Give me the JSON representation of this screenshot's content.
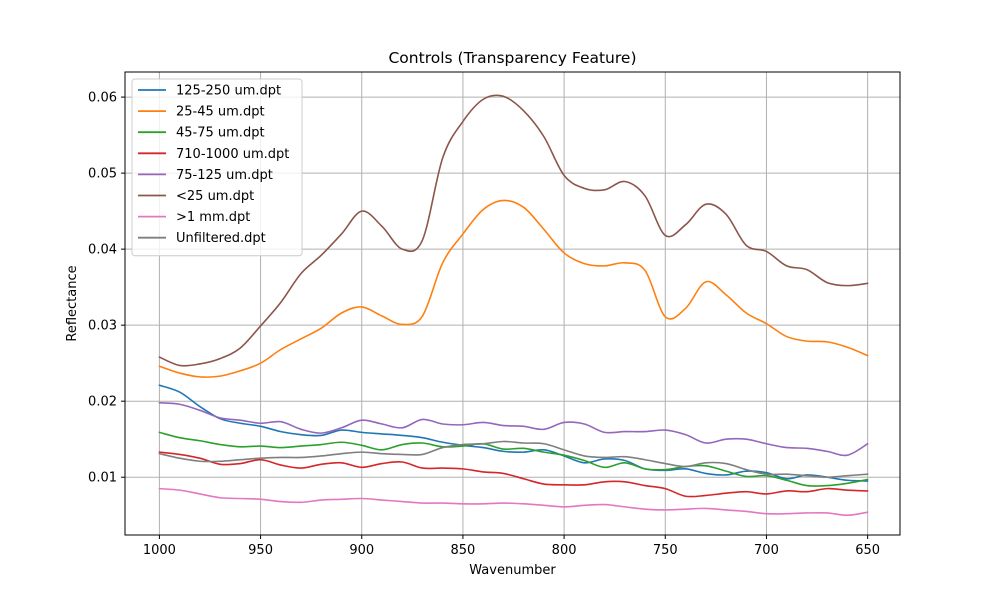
{
  "chart_data": {
    "type": "line",
    "title": "Controls (Transparency Feature)",
    "xlabel": "Wavenumber",
    "ylabel": "Reflectance",
    "xlim": [
      1017,
      634
    ],
    "ylim": [
      0.0024,
      0.0633
    ],
    "xticks": [
      1000,
      950,
      900,
      850,
      800,
      750,
      700,
      650
    ],
    "yticks": [
      0.01,
      0.02,
      0.03,
      0.04,
      0.05,
      0.06
    ],
    "ytick_labels": [
      "0.01",
      "0.02",
      "0.03",
      "0.04",
      "0.05",
      "0.06"
    ],
    "grid": true,
    "legend_position": "upper-left",
    "x": [
      1000,
      990,
      980,
      970,
      960,
      950,
      940,
      930,
      920,
      910,
      900,
      890,
      880,
      870,
      860,
      850,
      840,
      830,
      820,
      810,
      800,
      790,
      780,
      770,
      760,
      750,
      740,
      730,
      720,
      710,
      700,
      690,
      680,
      670,
      660,
      650
    ],
    "series": [
      {
        "name": "125-250 um.dpt",
        "color": "#1f77b4",
        "values": [
          0.0221,
          0.0212,
          0.0193,
          0.0177,
          0.0171,
          0.0167,
          0.016,
          0.0156,
          0.0155,
          0.0162,
          0.0159,
          0.0157,
          0.0155,
          0.0152,
          0.0146,
          0.0142,
          0.0139,
          0.0134,
          0.0133,
          0.0136,
          0.0128,
          0.0119,
          0.0124,
          0.0122,
          0.0111,
          0.0109,
          0.0111,
          0.0105,
          0.0103,
          0.0108,
          0.0106,
          0.0098,
          0.0103,
          0.01,
          0.0096,
          0.0095
        ]
      },
      {
        "name": "25-45 um.dpt",
        "color": "#ff7f0e",
        "values": [
          0.0246,
          0.0237,
          0.0232,
          0.0233,
          0.024,
          0.025,
          0.0268,
          0.0282,
          0.0296,
          0.0316,
          0.0324,
          0.0312,
          0.0301,
          0.0312,
          0.0382,
          0.042,
          0.0452,
          0.0464,
          0.0455,
          0.0426,
          0.0395,
          0.0381,
          0.0378,
          0.0382,
          0.0372,
          0.0311,
          0.0322,
          0.0357,
          0.034,
          0.0316,
          0.0302,
          0.0285,
          0.0279,
          0.0278,
          0.0271,
          0.026
        ]
      },
      {
        "name": "45-75 um.dpt",
        "color": "#2ca02c",
        "values": [
          0.0159,
          0.0152,
          0.0148,
          0.0143,
          0.014,
          0.0141,
          0.0139,
          0.0141,
          0.0143,
          0.0146,
          0.0142,
          0.0136,
          0.0143,
          0.0145,
          0.014,
          0.0141,
          0.0144,
          0.0137,
          0.0138,
          0.0133,
          0.0129,
          0.0122,
          0.0113,
          0.0119,
          0.0111,
          0.011,
          0.0114,
          0.0115,
          0.0108,
          0.0101,
          0.0102,
          0.0096,
          0.0089,
          0.0089,
          0.0092,
          0.0097
        ]
      },
      {
        "name": "710-1000 um.dpt",
        "color": "#d62728",
        "values": [
          0.0133,
          0.013,
          0.0125,
          0.0117,
          0.0118,
          0.0123,
          0.0116,
          0.0112,
          0.0117,
          0.0119,
          0.0113,
          0.0118,
          0.012,
          0.0112,
          0.0112,
          0.0111,
          0.0107,
          0.0105,
          0.0098,
          0.0091,
          0.009,
          0.009,
          0.0094,
          0.0094,
          0.0089,
          0.0085,
          0.0075,
          0.0076,
          0.0079,
          0.0081,
          0.0078,
          0.0082,
          0.0081,
          0.0085,
          0.0083,
          0.0082
        ]
      },
      {
        "name": "75-125 um.dpt",
        "color": "#9467bd",
        "values": [
          0.0198,
          0.0196,
          0.0188,
          0.0178,
          0.0175,
          0.0171,
          0.0173,
          0.0163,
          0.0158,
          0.0165,
          0.0175,
          0.017,
          0.0165,
          0.0176,
          0.017,
          0.0169,
          0.0172,
          0.0168,
          0.0167,
          0.0163,
          0.0172,
          0.017,
          0.0159,
          0.016,
          0.016,
          0.0162,
          0.0156,
          0.0145,
          0.015,
          0.015,
          0.0144,
          0.0139,
          0.0138,
          0.0134,
          0.0129,
          0.0144
        ]
      },
      {
        "name": "<25 um.dpt",
        "color": "#8c564b",
        "values": [
          0.0258,
          0.0247,
          0.0249,
          0.0256,
          0.027,
          0.0299,
          0.033,
          0.0368,
          0.0392,
          0.042,
          0.045,
          0.043,
          0.04,
          0.0412,
          0.052,
          0.0568,
          0.0597,
          0.0601,
          0.0582,
          0.0548,
          0.0497,
          0.048,
          0.0478,
          0.0489,
          0.047,
          0.0418,
          0.0432,
          0.0459,
          0.0446,
          0.0405,
          0.0397,
          0.0378,
          0.0373,
          0.0356,
          0.0352,
          0.0355
        ]
      },
      {
        "name": ">1 mm.dpt",
        "color": "#e377c2",
        "values": [
          0.0085,
          0.0083,
          0.0078,
          0.0073,
          0.0072,
          0.0071,
          0.0068,
          0.0067,
          0.007,
          0.0071,
          0.0072,
          0.007,
          0.0068,
          0.0066,
          0.0066,
          0.0065,
          0.0065,
          0.0066,
          0.0065,
          0.0063,
          0.0061,
          0.0063,
          0.0064,
          0.0061,
          0.0058,
          0.0057,
          0.0058,
          0.0059,
          0.0057,
          0.0055,
          0.0052,
          0.0052,
          0.0053,
          0.0053,
          0.005,
          0.0054
        ]
      },
      {
        "name": "Unfiltered.dpt",
        "color": "#7f7f7f",
        "values": [
          0.0131,
          0.0125,
          0.0121,
          0.0121,
          0.0123,
          0.0125,
          0.0126,
          0.0126,
          0.0128,
          0.0131,
          0.0133,
          0.0131,
          0.013,
          0.013,
          0.0139,
          0.0143,
          0.0144,
          0.0147,
          0.0145,
          0.0144,
          0.0136,
          0.0128,
          0.0126,
          0.0127,
          0.0123,
          0.0118,
          0.0114,
          0.0119,
          0.0118,
          0.011,
          0.0104,
          0.0104,
          0.0102,
          0.01,
          0.0102,
          0.0104
        ]
      }
    ]
  }
}
